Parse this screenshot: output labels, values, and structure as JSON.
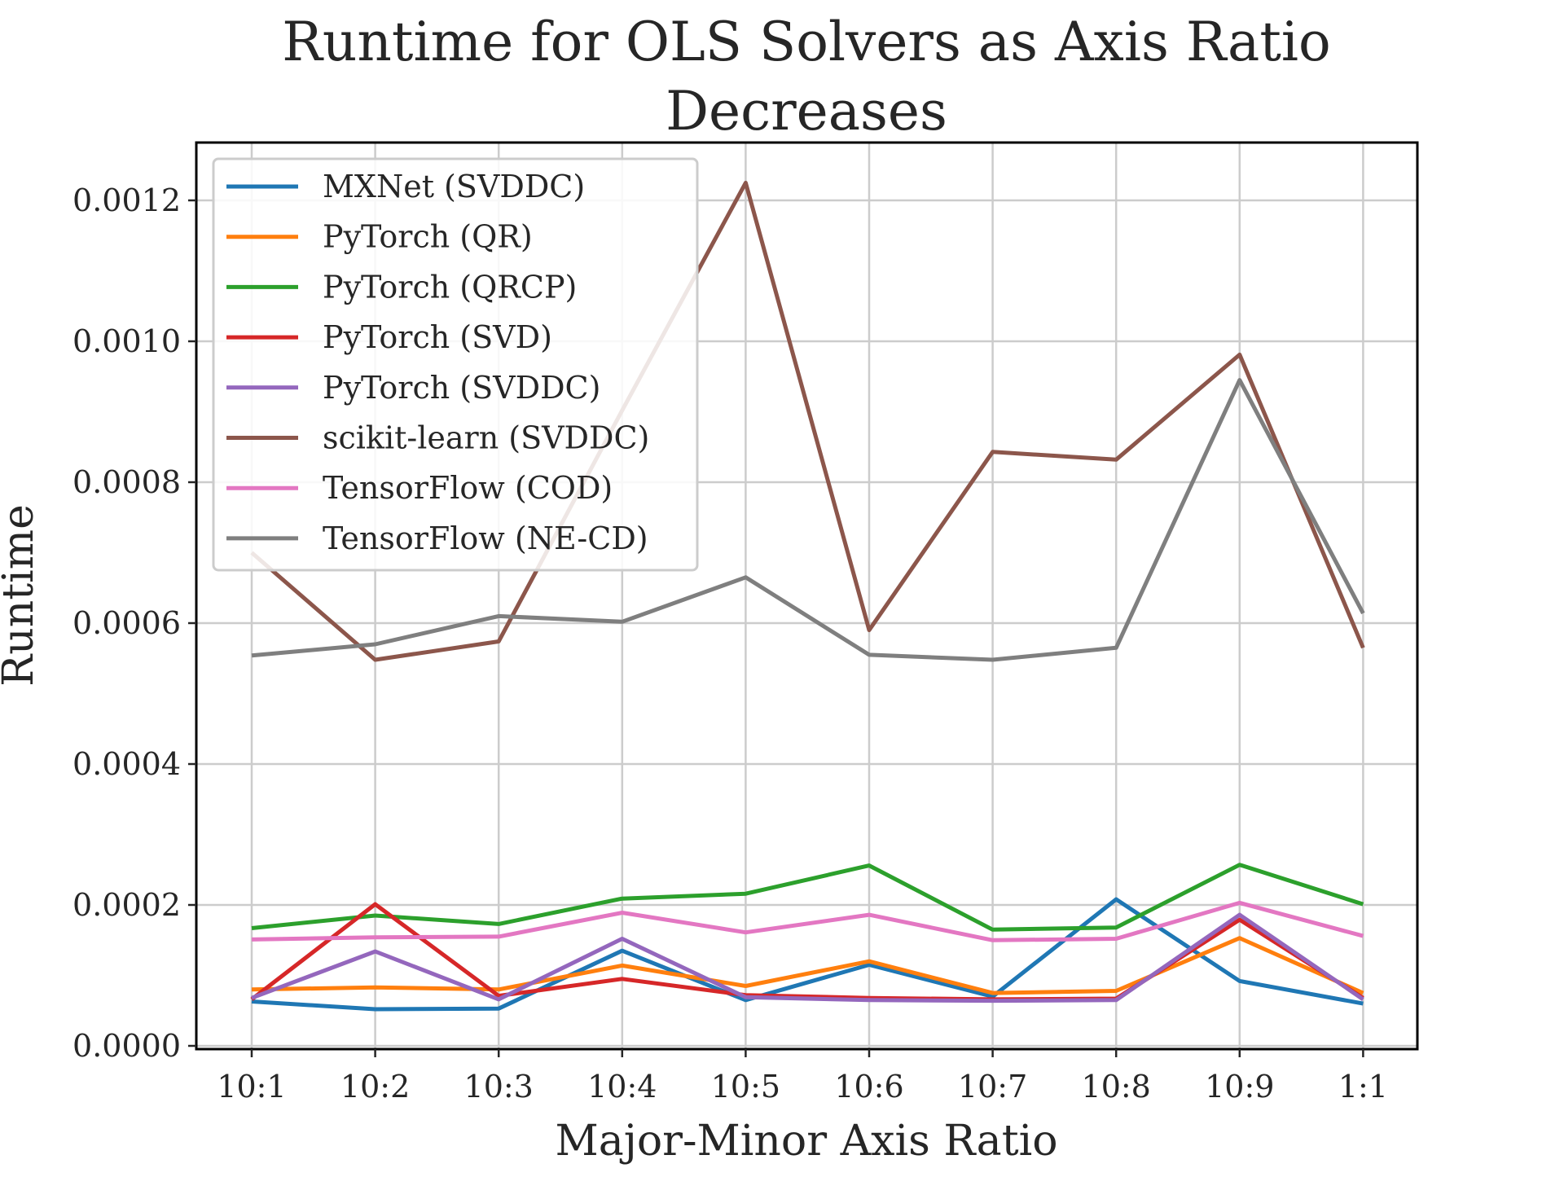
{
  "chart_data": {
    "type": "line",
    "title_line1": "Runtime for OLS Solvers as Axis Ratio",
    "title_line2": "Decreases",
    "xlabel": "Major-Minor Axis Ratio",
    "ylabel": "Runtime",
    "categories": [
      "10:1",
      "10:2",
      "10:3",
      "10:4",
      "10:5",
      "10:6",
      "10:7",
      "10:8",
      "10:9",
      "1:1"
    ],
    "ylim": [
      -3e-05,
      0.00128
    ],
    "yticks": [
      "0.0000",
      "0.0002",
      "0.0004",
      "0.0006",
      "0.0008",
      "0.0010",
      "0.0012"
    ],
    "ytick_values": [
      0.0,
      0.0002,
      0.0004,
      0.0006,
      0.0008,
      0.001,
      0.0012
    ],
    "grid": true,
    "legend_position": "top-left",
    "series": [
      {
        "name": "MXNet (SVDDC)",
        "color": "#1f77b4",
        "values": [
          6.3e-05,
          5.2e-05,
          5.3e-05,
          0.000135,
          6.5e-05,
          0.000115,
          7e-05,
          0.000208,
          9.2e-05,
          6e-05
        ]
      },
      {
        "name": "PyTorch (QR)",
        "color": "#ff7f0e",
        "values": [
          8e-05,
          8.3e-05,
          8e-05,
          0.000114,
          8.5e-05,
          0.00012,
          7.5e-05,
          7.8e-05,
          0.000153,
          7.5e-05
        ]
      },
      {
        "name": "PyTorch (QRCP)",
        "color": "#2ca02c",
        "values": [
          0.000167,
          0.000185,
          0.000173,
          0.000209,
          0.000216,
          0.000256,
          0.000165,
          0.000168,
          0.000257,
          0.000201
        ]
      },
      {
        "name": "PyTorch (SVD)",
        "color": "#d62728",
        "values": [
          6.6e-05,
          0.000201,
          7.1e-05,
          9.5e-05,
          7.2e-05,
          6.8e-05,
          6.6e-05,
          6.7e-05,
          0.000179,
          6.8e-05
        ]
      },
      {
        "name": "PyTorch (SVDDC)",
        "color": "#9467bd",
        "values": [
          6.8e-05,
          0.000134,
          6.6e-05,
          0.000152,
          6.9e-05,
          6.5e-05,
          6.4e-05,
          6.5e-05,
          0.000186,
          6.6e-05
        ]
      },
      {
        "name": "scikit-learn (SVDDC)",
        "color": "#8c564b",
        "values": [
          0.0007,
          0.000548,
          0.000574,
          0.000902,
          0.001225,
          0.00059,
          0.000843,
          0.000832,
          0.000981,
          0.000565
        ]
      },
      {
        "name": "TensorFlow (COD)",
        "color": "#e377c2",
        "values": [
          0.000151,
          0.000154,
          0.000155,
          0.000189,
          0.000161,
          0.000186,
          0.00015,
          0.000152,
          0.000203,
          0.000156
        ]
      },
      {
        "name": "TensorFlow (NE-CD)",
        "color": "#7f7f7f",
        "values": [
          0.000554,
          0.00057,
          0.00061,
          0.000602,
          0.000665,
          0.000555,
          0.000548,
          0.000565,
          0.000945,
          0.000614
        ]
      }
    ]
  }
}
